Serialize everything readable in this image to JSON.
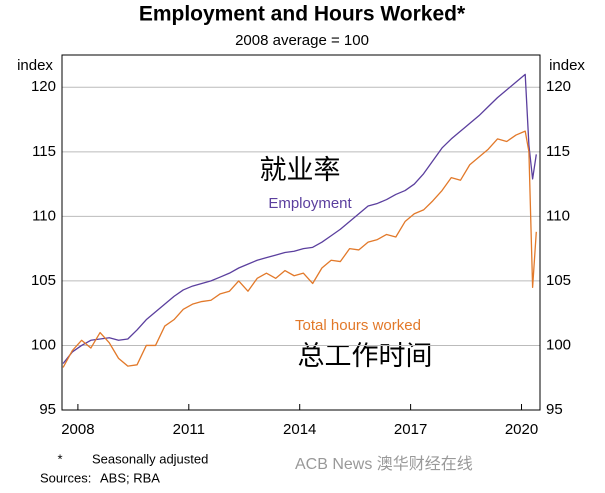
{
  "chart_data": {
    "type": "line",
    "title": "Employment and Hours Worked*",
    "subtitle": "2008 average = 100",
    "y_label": "index",
    "y2_label": "index",
    "x": [
      2007.6,
      2007.85,
      2008.1,
      2008.35,
      2008.6,
      2008.85,
      2009.1,
      2009.35,
      2009.6,
      2009.85,
      2010.1,
      2010.35,
      2010.6,
      2010.85,
      2011.1,
      2011.35,
      2011.6,
      2011.85,
      2012.1,
      2012.35,
      2012.6,
      2012.85,
      2013.1,
      2013.35,
      2013.6,
      2013.85,
      2014.1,
      2014.35,
      2014.6,
      2014.85,
      2015.1,
      2015.35,
      2015.6,
      2015.85,
      2016.1,
      2016.35,
      2016.6,
      2016.85,
      2017.1,
      2017.35,
      2017.6,
      2017.85,
      2018.1,
      2018.35,
      2018.6,
      2018.85,
      2019.1,
      2019.35,
      2019.6,
      2019.85,
      2020.1,
      2020.2,
      2020.3,
      2020.4
    ],
    "series": [
      {
        "name": "Employment",
        "color": "#5b3f9e",
        "values": [
          98.6,
          99.5,
          100.0,
          100.4,
          100.5,
          100.6,
          100.4,
          100.5,
          101.2,
          102.0,
          102.6,
          103.2,
          103.8,
          104.3,
          104.6,
          104.8,
          105.0,
          105.3,
          105.6,
          106.0,
          106.3,
          106.6,
          106.8,
          107.0,
          107.2,
          107.3,
          107.5,
          107.6,
          108.0,
          108.5,
          109.0,
          109.6,
          110.2,
          110.8,
          111.0,
          111.3,
          111.7,
          112.0,
          112.5,
          113.3,
          114.3,
          115.3,
          116.0,
          116.6,
          117.2,
          117.8,
          118.5,
          119.2,
          119.8,
          120.4,
          121.0,
          115.5,
          112.9,
          114.8
        ]
      },
      {
        "name": "Total hours worked",
        "color": "#e2792a",
        "values": [
          98.3,
          99.6,
          100.4,
          99.8,
          101.0,
          100.2,
          99.0,
          98.4,
          98.5,
          100.0,
          100.0,
          101.5,
          102.0,
          102.8,
          103.2,
          103.4,
          103.5,
          104.0,
          104.2,
          105.0,
          104.2,
          105.2,
          105.6,
          105.2,
          105.8,
          105.4,
          105.6,
          104.8,
          106.0,
          106.6,
          106.5,
          107.5,
          107.4,
          108.0,
          108.2,
          108.6,
          108.4,
          109.6,
          110.2,
          110.5,
          111.2,
          112.0,
          113.0,
          112.8,
          114.0,
          114.6,
          115.2,
          116.0,
          115.8,
          116.3,
          116.6,
          115.0,
          104.5,
          108.8
        ]
      }
    ],
    "xlim": [
      2007.57,
      2020.5
    ],
    "xticks": [
      2008,
      2011,
      2014,
      2017,
      2020
    ],
    "ylim": [
      95,
      122.5
    ],
    "yticks": [
      95,
      100,
      105,
      110,
      115,
      120
    ],
    "grid": true,
    "annotations": [
      "就业率",
      "总工作时间"
    ],
    "footnote_marker": "*",
    "footnote": "Seasonally adjusted",
    "sources_label": "Sources:",
    "sources": "ABS; RBA",
    "watermark": "ACB News 澳华财经在线"
  }
}
